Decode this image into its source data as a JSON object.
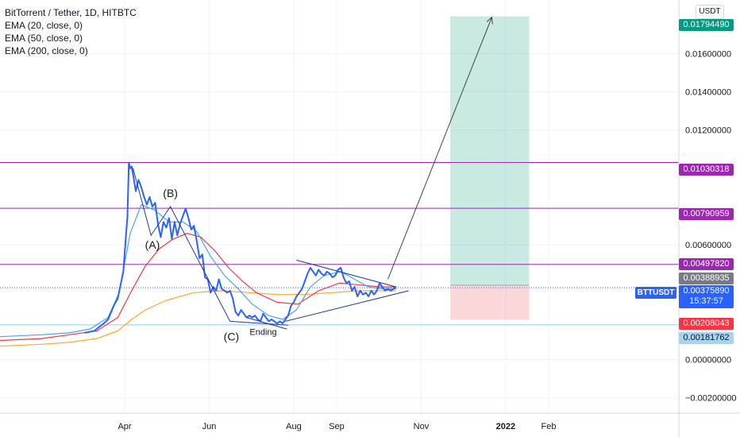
{
  "legend": {
    "title": "BitTorrent / Tether, 1D, HITBTC",
    "indicators": [
      "EMA (20, close, 0)",
      "EMA (50, close, 0)",
      "EMA (200, close, 0)"
    ]
  },
  "unit_button": "USDT",
  "symbol_tag": "BTTUSDT",
  "price_tags": {
    "target": {
      "label": "0.01794490",
      "color": "#089981"
    },
    "level_1": {
      "label": "0.01030318",
      "color": "#9c27b0"
    },
    "level_2": {
      "label": "0.00790959",
      "color": "#9c27b0"
    },
    "level_3": {
      "label": "0.00497820",
      "color": "#9c27b0"
    },
    "entry": {
      "label": "0.00388935",
      "color": "#787b86"
    },
    "last": {
      "label": "0.00375890",
      "countdown": "15:37:57",
      "color": "#2962ff"
    },
    "stop": {
      "label": "0.00208043",
      "color": "#f23645"
    },
    "support": {
      "label": "0.00181762",
      "color": "#a8d3f0",
      "text_color": "#131722"
    }
  },
  "annotations": {
    "wave_a": "(A)",
    "wave_b": "(B)",
    "wave_c": "(C)",
    "ending": "Ending"
  },
  "chart_data": {
    "type": "line",
    "title": "BitTorrent / Tether, 1D, HITBTC",
    "y_axis_ticks": [
      "0.01600000",
      "0.01400000",
      "0.01200000",
      "0.00600000",
      "0.00000000",
      "−0.00200000"
    ],
    "x_axis_ticks": [
      "Apr",
      "Jun",
      "Aug",
      "Sep",
      "Nov",
      "2022",
      "Feb"
    ],
    "ylim": [
      -0.0028,
      0.0188
    ],
    "x_domain_days": [
      -90,
      400
    ],
    "tick_days": {
      "Apr": 0,
      "Jun": 61,
      "Aug": 122,
      "Sep": 153,
      "Nov": 214,
      "2022": 275,
      "Feb": 306
    },
    "horizontal_levels": [
      {
        "value": 0.01030318,
        "color": "#9c27b0"
      },
      {
        "value": 0.00790959,
        "color": "#9c27b0"
      },
      {
        "value": 0.0049782,
        "color": "#9c27b0"
      },
      {
        "value": 0.00181762,
        "color": "#90caf9"
      }
    ],
    "position_box": {
      "start_day": 235,
      "end_day": 292,
      "entry": 0.00388935,
      "target": 0.0179449,
      "stop": 0.00208043
    },
    "price_series": {
      "name": "BTTUSDT",
      "color": "#2962ff",
      "days": [
        -29,
        -22,
        -15,
        -12,
        -8,
        -5,
        -1,
        2,
        3,
        4,
        5,
        6,
        8,
        10,
        12,
        14,
        16,
        18,
        20,
        22,
        24,
        26,
        28,
        30,
        32,
        34,
        36,
        38,
        40,
        42,
        44,
        46,
        48,
        50,
        52,
        54,
        56,
        58,
        60,
        62,
        64,
        66,
        68,
        70,
        72,
        74,
        76,
        78,
        80,
        82,
        84,
        86,
        88,
        90,
        92,
        94,
        96,
        98,
        100,
        102,
        104,
        106,
        108,
        110,
        112,
        114,
        116,
        118,
        120,
        122,
        124,
        126,
        128,
        130,
        132,
        134,
        136,
        138,
        140,
        142,
        144,
        146,
        148,
        150,
        152,
        154,
        156,
        158,
        160,
        162,
        164,
        166,
        168,
        170,
        172,
        174,
        176,
        178,
        180,
        182,
        184,
        186,
        188,
        190,
        192,
        194,
        196
      ],
      "values": [
        0.0014,
        0.0015,
        0.0019,
        0.0021,
        0.0028,
        0.0032,
        0.0046,
        0.0075,
        0.0103,
        0.01,
        0.0101,
        0.0097,
        0.0088,
        0.0094,
        0.009,
        0.0085,
        0.0081,
        0.0085,
        0.008,
        0.0082,
        0.0071,
        0.0064,
        0.0072,
        0.0069,
        0.0074,
        0.0063,
        0.0072,
        0.0065,
        0.0071,
        0.0075,
        0.0079,
        0.0074,
        0.0068,
        0.007,
        0.0062,
        0.0053,
        0.0055,
        0.0043,
        0.0042,
        0.0035,
        0.0038,
        0.0036,
        0.0042,
        0.0037,
        0.0036,
        0.0035,
        0.0036,
        0.0032,
        0.0025,
        0.0023,
        0.0026,
        0.0024,
        0.0022,
        0.0023,
        0.0022,
        0.0023,
        0.0021,
        0.002,
        0.0024,
        0.0022,
        0.002,
        0.0021,
        0.002,
        0.0019,
        0.002,
        0.0019,
        0.0021,
        0.0023,
        0.0028,
        0.003,
        0.0033,
        0.0035,
        0.0037,
        0.0041,
        0.0045,
        0.0048,
        0.0046,
        0.0044,
        0.0047,
        0.0045,
        0.0044,
        0.0046,
        0.0045,
        0.0043,
        0.0044,
        0.0047,
        0.0048,
        0.0043,
        0.004,
        0.0041,
        0.0036,
        0.0038,
        0.0033,
        0.0036,
        0.0034,
        0.0035,
        0.0033,
        0.0036,
        0.0034,
        0.0036,
        0.004,
        0.0038,
        0.0036,
        0.0037,
        0.0036,
        0.0037,
        0.0038
      ]
    },
    "ema_20": {
      "color": "#42a5f5",
      "days": [
        -90,
        -60,
        -40,
        -25,
        -12,
        -4,
        4,
        12,
        22,
        32,
        42,
        52,
        62,
        72,
        82,
        92,
        104,
        114,
        124,
        134,
        144,
        156,
        166,
        176,
        186,
        196
      ],
      "values": [
        0.0012,
        0.0013,
        0.0014,
        0.0016,
        0.0022,
        0.0035,
        0.0066,
        0.0081,
        0.0078,
        0.0072,
        0.0072,
        0.0067,
        0.0054,
        0.0044,
        0.0037,
        0.0029,
        0.0023,
        0.0021,
        0.0026,
        0.0038,
        0.0044,
        0.0046,
        0.0042,
        0.0038,
        0.0037,
        0.0037
      ]
    },
    "ema_50": {
      "color": "#f23645",
      "days": [
        -90,
        -60,
        -40,
        -20,
        -5,
        5,
        15,
        25,
        35,
        45,
        55,
        65,
        75,
        85,
        95,
        110,
        125,
        140,
        155,
        170,
        185,
        196
      ],
      "values": [
        0.001,
        0.0011,
        0.0013,
        0.0015,
        0.0022,
        0.0036,
        0.0049,
        0.0058,
        0.0063,
        0.0066,
        0.0064,
        0.0057,
        0.0048,
        0.0041,
        0.0035,
        0.003,
        0.0029,
        0.0036,
        0.004,
        0.0039,
        0.0038,
        0.0038
      ]
    },
    "ema_200": {
      "color": "#ffa726",
      "days": [
        -90,
        -60,
        -40,
        -20,
        -5,
        5,
        15,
        30,
        50,
        70,
        90,
        110,
        130,
        150,
        170,
        196
      ],
      "values": [
        0.0007,
        0.0008,
        0.0009,
        0.0011,
        0.0015,
        0.0021,
        0.0026,
        0.0031,
        0.0035,
        0.0036,
        0.0035,
        0.0034,
        0.0034,
        0.0035,
        0.0036,
        0.0036
      ]
    },
    "drawings": {
      "color": "#1e3a8a",
      "abc_path": {
        "days": [
          6,
          19,
          33,
          76
        ],
        "values": [
          0.01,
          0.0065,
          0.008,
          0.002
        ]
      },
      "ending_wedge_upper": {
        "days": [
          76,
          118
        ],
        "values": [
          0.002,
          0.0018
        ]
      },
      "ending_wedge_lower": {
        "days": [
          88,
          117
        ],
        "values": [
          0.0022,
          0.0016
        ]
      },
      "triangle_upper": {
        "days": [
          124,
          196
        ],
        "values": [
          0.0052,
          0.0038
        ]
      },
      "triangle_lower": {
        "days": [
          116,
          205
        ],
        "values": [
          0.002,
          0.0036
        ]
      },
      "projection_arrow": {
        "days": [
          190,
          265
        ],
        "values": [
          0.0042,
          0.0179
        ]
      }
    }
  }
}
